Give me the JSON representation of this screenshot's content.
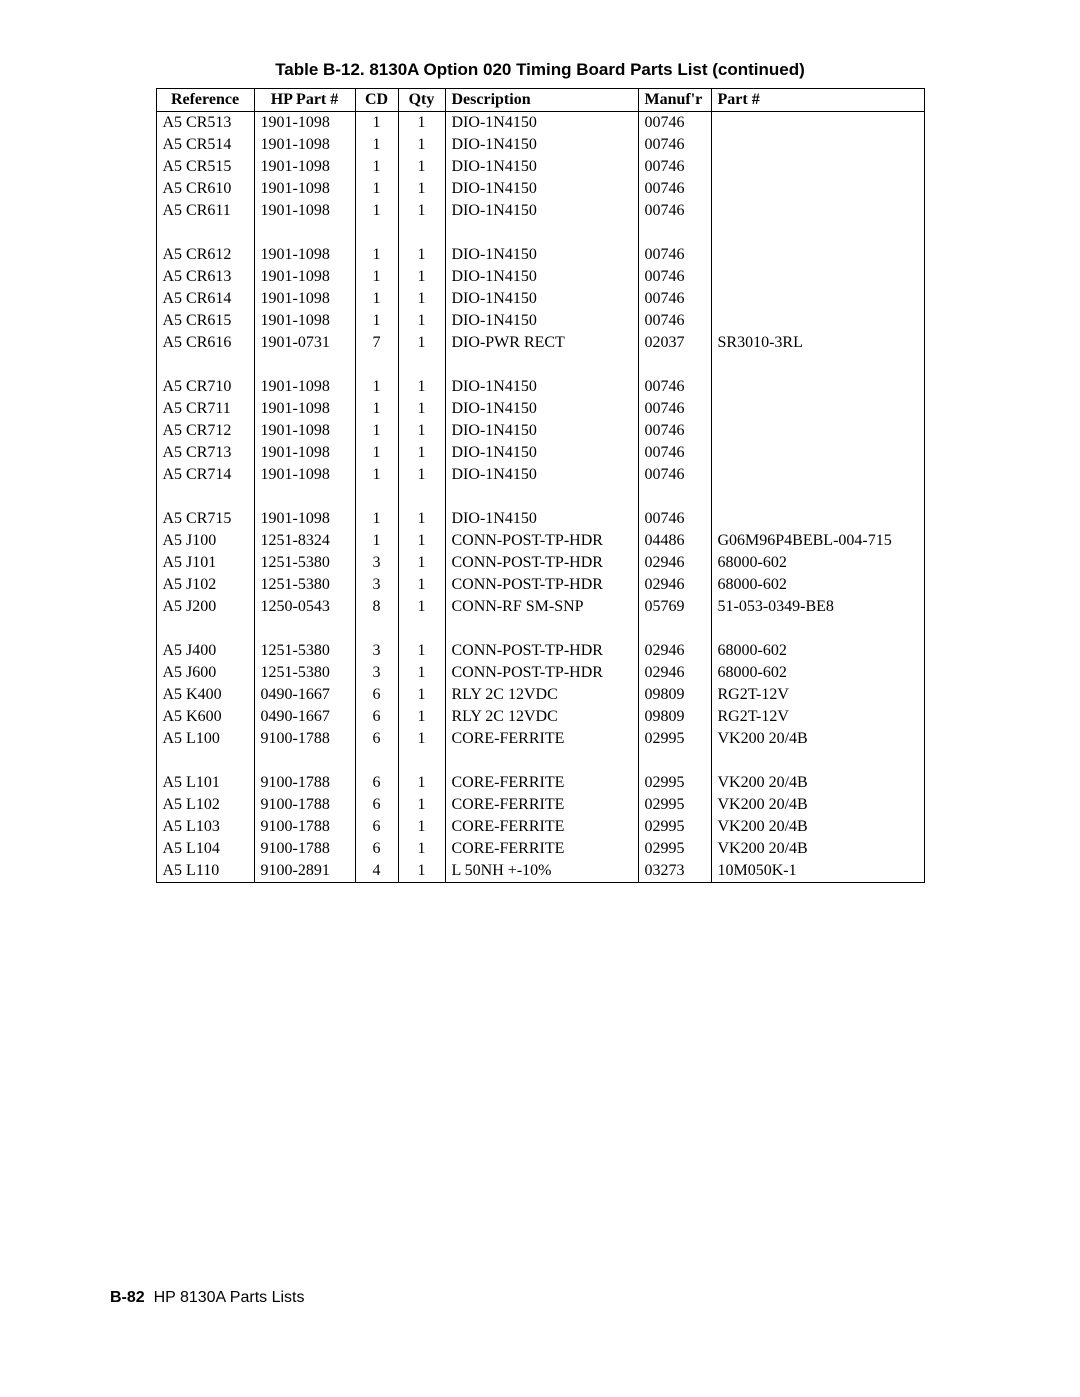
{
  "title": "Table B-12. 8130A Option 020 Timing Board Parts List (continued)",
  "footer_prefix": "B-82",
  "footer_rest": "HP 8130A Parts Lists",
  "columns": [
    "Reference",
    "HP Part #",
    "CD",
    "Qty",
    "Description",
    "Manuf'r",
    "Part #"
  ],
  "groups": [
    [
      {
        "ref": "A5 CR513",
        "hp": "1901-1098",
        "cd": "1",
        "qty": "1",
        "desc": "DIO-1N4150",
        "manuf": "00746",
        "part": ""
      },
      {
        "ref": "A5 CR514",
        "hp": "1901-1098",
        "cd": "1",
        "qty": "1",
        "desc": "DIO-1N4150",
        "manuf": "00746",
        "part": ""
      },
      {
        "ref": "A5 CR515",
        "hp": "1901-1098",
        "cd": "1",
        "qty": "1",
        "desc": "DIO-1N4150",
        "manuf": "00746",
        "part": ""
      },
      {
        "ref": "A5 CR610",
        "hp": "1901-1098",
        "cd": "1",
        "qty": "1",
        "desc": "DIO-1N4150",
        "manuf": "00746",
        "part": ""
      },
      {
        "ref": "A5 CR611",
        "hp": "1901-1098",
        "cd": "1",
        "qty": "1",
        "desc": "DIO-1N4150",
        "manuf": "00746",
        "part": ""
      }
    ],
    [
      {
        "ref": "A5 CR612",
        "hp": "1901-1098",
        "cd": "1",
        "qty": "1",
        "desc": "DIO-1N4150",
        "manuf": "00746",
        "part": ""
      },
      {
        "ref": "A5 CR613",
        "hp": "1901-1098",
        "cd": "1",
        "qty": "1",
        "desc": "DIO-1N4150",
        "manuf": "00746",
        "part": ""
      },
      {
        "ref": "A5 CR614",
        "hp": "1901-1098",
        "cd": "1",
        "qty": "1",
        "desc": "DIO-1N4150",
        "manuf": "00746",
        "part": ""
      },
      {
        "ref": "A5 CR615",
        "hp": "1901-1098",
        "cd": "1",
        "qty": "1",
        "desc": "DIO-1N4150",
        "manuf": "00746",
        "part": ""
      },
      {
        "ref": "A5 CR616",
        "hp": "1901-0731",
        "cd": "7",
        "qty": "1",
        "desc": "DIO-PWR RECT",
        "manuf": "02037",
        "part": "SR3010-3RL"
      }
    ],
    [
      {
        "ref": "A5 CR710",
        "hp": "1901-1098",
        "cd": "1",
        "qty": "1",
        "desc": "DIO-1N4150",
        "manuf": "00746",
        "part": ""
      },
      {
        "ref": "A5 CR711",
        "hp": "1901-1098",
        "cd": "1",
        "qty": "1",
        "desc": "DIO-1N4150",
        "manuf": "00746",
        "part": ""
      },
      {
        "ref": "A5 CR712",
        "hp": "1901-1098",
        "cd": "1",
        "qty": "1",
        "desc": "DIO-1N4150",
        "manuf": "00746",
        "part": ""
      },
      {
        "ref": "A5 CR713",
        "hp": "1901-1098",
        "cd": "1",
        "qty": "1",
        "desc": "DIO-1N4150",
        "manuf": "00746",
        "part": ""
      },
      {
        "ref": "A5 CR714",
        "hp": "1901-1098",
        "cd": "1",
        "qty": "1",
        "desc": "DIO-1N4150",
        "manuf": "00746",
        "part": ""
      }
    ],
    [
      {
        "ref": "A5 CR715",
        "hp": "1901-1098",
        "cd": "1",
        "qty": "1",
        "desc": "DIO-1N4150",
        "manuf": "00746",
        "part": ""
      },
      {
        "ref": "A5 J100",
        "hp": "1251-8324",
        "cd": "1",
        "qty": "1",
        "desc": "CONN-POST-TP-HDR",
        "manuf": "04486",
        "part": "G06M96P4BEBL-004-715"
      },
      {
        "ref": "A5 J101",
        "hp": "1251-5380",
        "cd": "3",
        "qty": "1",
        "desc": "CONN-POST-TP-HDR",
        "manuf": "02946",
        "part": "68000-602"
      },
      {
        "ref": "A5 J102",
        "hp": "1251-5380",
        "cd": "3",
        "qty": "1",
        "desc": "CONN-POST-TP-HDR",
        "manuf": "02946",
        "part": "68000-602"
      },
      {
        "ref": "A5 J200",
        "hp": "1250-0543",
        "cd": "8",
        "qty": "1",
        "desc": "CONN-RF SM-SNP",
        "manuf": "05769",
        "part": "51-053-0349-BE8"
      }
    ],
    [
      {
        "ref": "A5 J400",
        "hp": "1251-5380",
        "cd": "3",
        "qty": "1",
        "desc": "CONN-POST-TP-HDR",
        "manuf": "02946",
        "part": "68000-602"
      },
      {
        "ref": "A5 J600",
        "hp": "1251-5380",
        "cd": "3",
        "qty": "1",
        "desc": "CONN-POST-TP-HDR",
        "manuf": "02946",
        "part": "68000-602"
      },
      {
        "ref": "A5 K400",
        "hp": "0490-1667",
        "cd": "6",
        "qty": "1",
        "desc": "RLY 2C 12VDC",
        "manuf": "09809",
        "part": "RG2T-12V"
      },
      {
        "ref": "A5 K600",
        "hp": "0490-1667",
        "cd": "6",
        "qty": "1",
        "desc": "RLY 2C 12VDC",
        "manuf": "09809",
        "part": "RG2T-12V"
      },
      {
        "ref": "A5 L100",
        "hp": "9100-1788",
        "cd": "6",
        "qty": "1",
        "desc": "CORE-FERRITE",
        "manuf": "02995",
        "part": "VK200 20/4B"
      }
    ],
    [
      {
        "ref": "A5 L101",
        "hp": "9100-1788",
        "cd": "6",
        "qty": "1",
        "desc": "CORE-FERRITE",
        "manuf": "02995",
        "part": "VK200 20/4B"
      },
      {
        "ref": "A5 L102",
        "hp": "9100-1788",
        "cd": "6",
        "qty": "1",
        "desc": "CORE-FERRITE",
        "manuf": "02995",
        "part": "VK200 20/4B"
      },
      {
        "ref": "A5 L103",
        "hp": "9100-1788",
        "cd": "6",
        "qty": "1",
        "desc": "CORE-FERRITE",
        "manuf": "02995",
        "part": "VK200 20/4B"
      },
      {
        "ref": "A5 L104",
        "hp": "9100-1788",
        "cd": "6",
        "qty": "1",
        "desc": "CORE-FERRITE",
        "manuf": "02995",
        "part": "VK200 20/4B"
      },
      {
        "ref": "A5 L110",
        "hp": "9100-2891",
        "cd": "4",
        "qty": "1",
        "desc": "L 50NH +-10%",
        "manuf": "03273",
        "part": "10M050K-1"
      }
    ]
  ]
}
